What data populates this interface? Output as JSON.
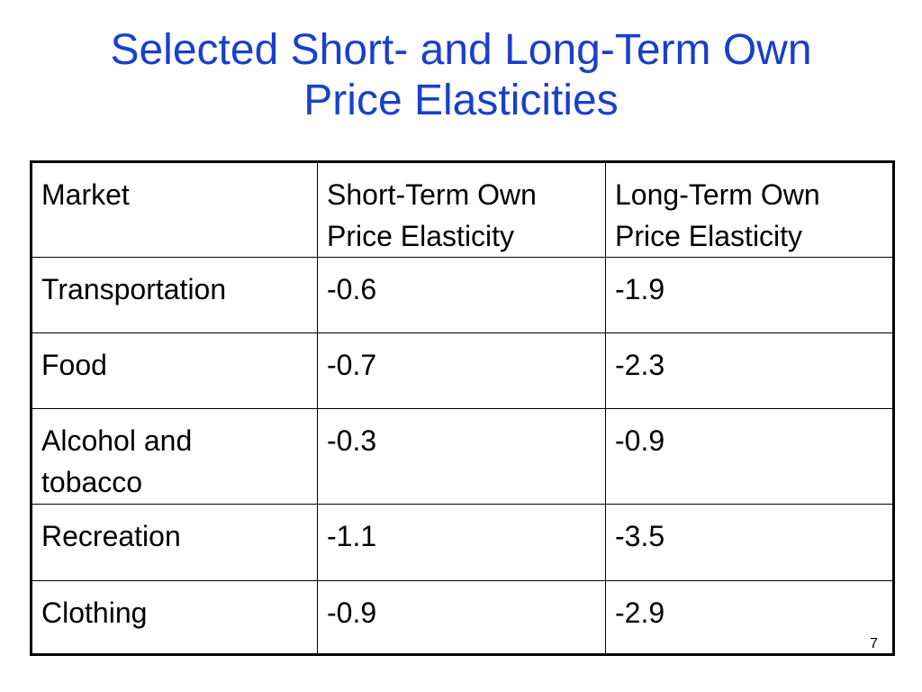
{
  "slide": {
    "title_line1": "Selected Short- and Long-Term Own",
    "title_line2": "Price Elasticities",
    "page_number": "7"
  },
  "table": {
    "headers": [
      "Market",
      "Short-Term Own\nPrice Elasticity",
      "Long-Term Own\nPrice Elasticity"
    ],
    "rows": [
      [
        "Transportation",
        "-0.6",
        "-1.9"
      ],
      [
        "Food",
        "-0.7",
        "-2.3"
      ],
      [
        "Alcohol and\ntobacco",
        "-0.3",
        "-0.9"
      ],
      [
        "Recreation",
        "-1.1",
        "-3.5"
      ],
      [
        "Clothing",
        "-0.9",
        "-2.9"
      ]
    ]
  },
  "colors": {
    "title": "#1a3fcc",
    "text": "#000000",
    "background": "#ffffff"
  }
}
